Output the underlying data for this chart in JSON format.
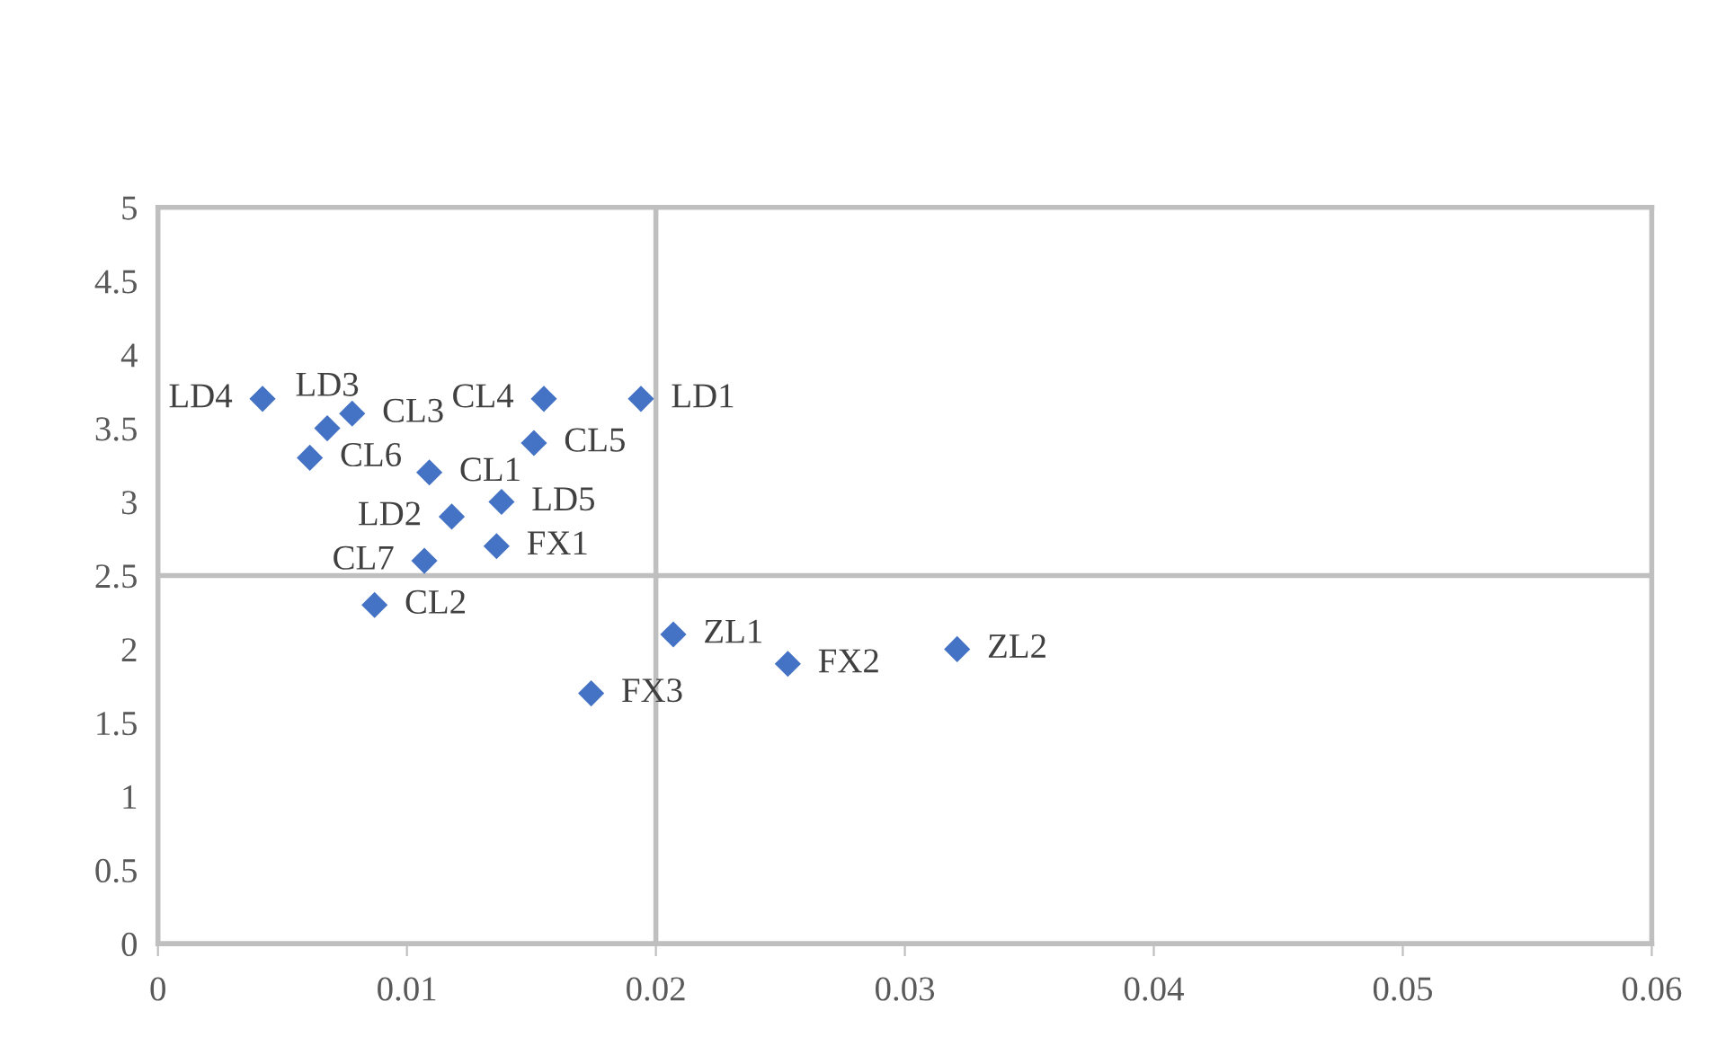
{
  "chart_data": {
    "type": "scatter",
    "marker": "diamond",
    "grid": false,
    "legend": false,
    "xlim": [
      0,
      0.06
    ],
    "xticks": [
      {
        "value": 0,
        "label": "0"
      },
      0.01,
      0.02,
      0.03,
      0.04,
      0.05,
      0.06
    ],
    "ylim": [
      0,
      5
    ],
    "yticks": [
      0,
      0.5,
      1,
      1.5,
      2,
      2.5,
      3,
      3.5,
      4,
      4.5,
      5
    ],
    "series": [
      {
        "color": "#4472c4",
        "x": [
          0.0042,
          0.0068,
          0.0078,
          0.0061,
          0.0109,
          0.0118,
          0.0107,
          0.0087,
          0.0138,
          0.0136,
          0.0155,
          0.0194,
          0.0151,
          0.0207,
          0.0253,
          0.0321,
          0.0174
        ],
        "values": [
          3.7,
          3.5,
          3.6,
          3.3,
          3.2,
          2.9,
          2.6,
          2.3,
          3.0,
          2.7,
          3.7,
          3.7,
          3.4,
          2.1,
          1.9,
          2.0,
          1.7
        ]
      }
    ],
    "ref_lines": [
      {
        "axis": "x",
        "value": 0.02,
        "color": "#bfbfbf"
      },
      {
        "axis": "y",
        "value": 2.5,
        "color": "#bfbfbf"
      }
    ],
    "annotations": [
      {
        "text": "LD4",
        "x": 0.0042,
        "y": 3.7
      },
      {
        "text": "LD3",
        "x": 0.0068,
        "y": 3.5
      },
      {
        "text": "CL3",
        "x": 0.0078,
        "y": 3.6
      },
      {
        "text": "CL6",
        "x": 0.0061,
        "y": 3.3
      },
      {
        "text": "CL1",
        "x": 0.0109,
        "y": 3.2
      },
      {
        "text": "LD2",
        "x": 0.0118,
        "y": 2.9
      },
      {
        "text": "CL7",
        "x": 0.0107,
        "y": 2.6
      },
      {
        "text": "CL2",
        "x": 0.0087,
        "y": 2.3
      },
      {
        "text": "LD5",
        "x": 0.0138,
        "y": 3.0
      },
      {
        "text": "FX1",
        "x": 0.0136,
        "y": 2.7
      },
      {
        "text": "CL4",
        "x": 0.0155,
        "y": 3.7
      },
      {
        "text": "LD1",
        "x": 0.0194,
        "y": 3.7
      },
      {
        "text": "CL5",
        "x": 0.0151,
        "y": 3.4
      },
      {
        "text": "ZL1",
        "x": 0.0207,
        "y": 2.1
      },
      {
        "text": "FX2",
        "x": 0.0253,
        "y": 1.9
      },
      {
        "text": "ZL2",
        "x": 0.0321,
        "y": 2.0
      },
      {
        "text": "FX3",
        "x": 0.0174,
        "y": 1.7
      }
    ]
  }
}
